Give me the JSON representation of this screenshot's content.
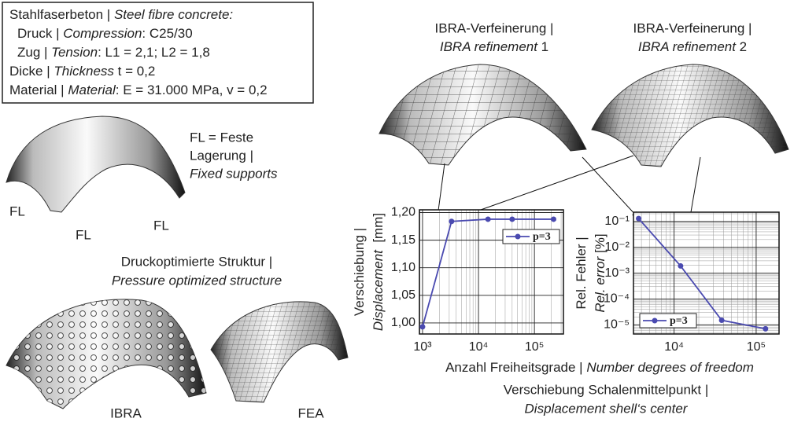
{
  "info_box": {
    "lines": [
      [
        {
          "text": "Stahlfaserbeton | "
        },
        {
          "text": "Steel fibre concrete:",
          "italic": true
        }
      ],
      [
        {
          "text": "Druck | "
        },
        {
          "text": "Compression",
          "italic": true
        },
        {
          "text": ": C25/30"
        }
      ],
      [
        {
          "text": "Zug | "
        },
        {
          "text": "Tension",
          "italic": true
        },
        {
          "text": ": L1 = 2,1; L2 = 1,8"
        }
      ],
      [
        {
          "text": "Dicke | "
        },
        {
          "text": "Thickness",
          "italic": true
        },
        {
          "text": " t = 0,2"
        }
      ],
      [
        {
          "text": "Material | "
        },
        {
          "text": "Material",
          "italic": true
        },
        {
          "text": ": E = 31.000 MPa, v = 0,2"
        }
      ]
    ]
  },
  "supports": {
    "legend": [
      "FL = Feste",
      "Lagerung |",
      "Fixed supports"
    ],
    "labels": [
      "FL",
      "FL",
      "FL"
    ]
  },
  "optimized": {
    "title": "Druckoptimierte Struktur |",
    "subtitle": "Pressure optimized structure",
    "ibra": "IBRA",
    "fea": "FEA"
  },
  "refinements": [
    {
      "title": "IBRA-Verfeinerung |",
      "subtitle": [
        {
          "text": "IBRA refinement",
          "italic": true
        },
        {
          "text": " 1"
        }
      ]
    },
    {
      "title": "IBRA-Verfeinerung |",
      "subtitle": [
        {
          "text": "IBRA refinement",
          "italic": true
        },
        {
          "text": " 2"
        }
      ]
    }
  ],
  "x_label": [
    {
      "text": "Anzahl Freiheitsgrade | "
    },
    {
      "text": "Number degrees of freedom",
      "italic": true
    }
  ],
  "caption": [
    "Verschiebung Schalenmittelpunkt |",
    "Displacement shell‘s center"
  ],
  "chart_data": [
    {
      "type": "line",
      "xlog": true,
      "grid": true,
      "legend": "upper right",
      "y_label": [
        [
          {
            "text": "Verschiebung |"
          }
        ],
        [
          {
            "text": "Displacement",
            "italic": true
          },
          {
            "text": "  [mm]"
          }
        ]
      ],
      "x": [
        1000,
        3300,
        14800,
        40000,
        220000
      ],
      "series": [
        {
          "name": "p=3",
          "color": "#4a4ab0",
          "values": [
            0.993,
            1.184,
            1.188,
            1.188,
            1.188
          ]
        }
      ],
      "xlim": [
        880,
        330000
      ],
      "xticks": [
        {
          "value": 1000,
          "label": "10³"
        },
        {
          "value": 10000,
          "label": "10⁴"
        },
        {
          "value": 100000,
          "label": "10⁵"
        }
      ],
      "ylim": [
        0.98,
        1.205
      ],
      "yticks": [
        {
          "value": 1.0,
          "label": "1,00"
        },
        {
          "value": 1.05,
          "label": "1,05"
        },
        {
          "value": 1.1,
          "label": "1,10"
        },
        {
          "value": 1.15,
          "label": "1,15"
        },
        {
          "value": 1.2,
          "label": "1,20"
        }
      ]
    },
    {
      "type": "line",
      "xlog": true,
      "ylog": true,
      "grid": true,
      "legend": "lower left",
      "y_label": [
        [
          {
            "text": "Rel. Fehler |"
          }
        ],
        [
          {
            "text": "Rel. error",
            "italic": true
          },
          {
            "text": " [%]"
          }
        ]
      ],
      "x": [
        3700,
        12000,
        38000,
        130000
      ],
      "series": [
        {
          "name": "p=3",
          "color": "#4a4ab0",
          "values": [
            0.13,
            0.0019,
            1.5e-05,
            7e-06
          ]
        }
      ],
      "xlim": [
        3200,
        190000
      ],
      "xticks": [
        {
          "value": 10000,
          "label": "10⁴"
        },
        {
          "value": 100000,
          "label": "10⁵"
        }
      ],
      "ylim": [
        4.4e-06,
        0.23
      ],
      "yticks": [
        {
          "value": 1e-05,
          "label": "10⁻⁵"
        },
        {
          "value": 0.0001,
          "label": "10⁻⁴"
        },
        {
          "value": 0.001,
          "label": "10⁻³"
        },
        {
          "value": 0.01,
          "label": "10⁻²"
        },
        {
          "value": 0.1,
          "label": "10⁻¹"
        }
      ]
    }
  ]
}
